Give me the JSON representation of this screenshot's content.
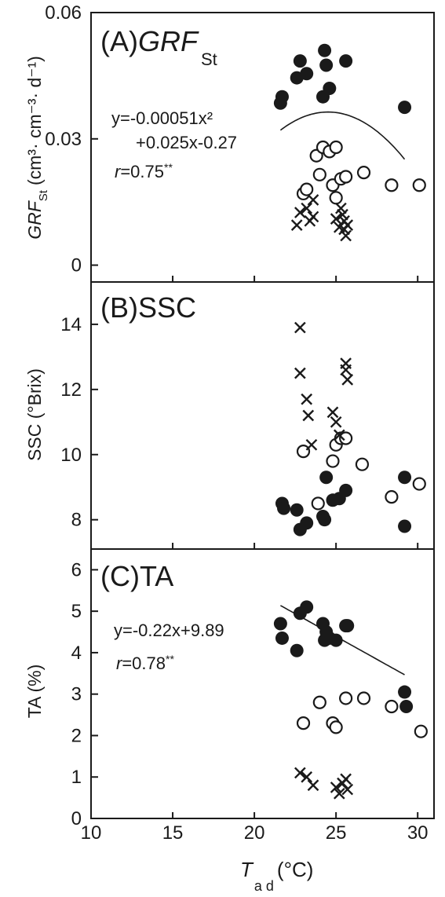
{
  "x_axis": {
    "label_main": "T",
    "label_sub": "a d",
    "label_unit": "(°C)",
    "ticks": [
      "10",
      "15",
      "20",
      "25",
      "30"
    ]
  },
  "panels": [
    {
      "label_prefix": "(A)",
      "label_main": "GRF",
      "label_sub": "St",
      "ylabel_main": "GRF",
      "ylabel_sub": "St",
      "ylabel_unit": "(cm³· cm⁻³· d⁻¹)",
      "yticks": [
        "0",
        "0.03",
        "0.06"
      ],
      "equation_line1": "y=-0.00051x²",
      "equation_line2": "+0.025x-0.27",
      "r_prefix": "r",
      "r_value": "=0.75",
      "r_sig": "**"
    },
    {
      "label_prefix": "(B)",
      "label_main": "SSC",
      "ylabel_main": "SSC (°Brix)",
      "yticks": [
        "8",
        "10",
        "12",
        "14"
      ]
    },
    {
      "label_prefix": "(C)",
      "label_main": "TA",
      "ylabel_main": "TA (%)",
      "yticks": [
        "0",
        "1",
        "2",
        "3",
        "4",
        "5",
        "6"
      ],
      "equation_line1": "y=-0.22x+9.89",
      "r_prefix": "r",
      "r_value": "=0.78",
      "r_sig": "**"
    }
  ],
  "chart_data": [
    {
      "type": "scatter",
      "title": "(A)GRF St",
      "xlabel": "T a d (°C)",
      "ylabel": "GRF St (cm³· cm⁻³· d⁻¹)",
      "xlim": [
        10,
        31
      ],
      "ylim": [
        -0.004,
        0.06
      ],
      "series": [
        {
          "marker": "filled-circle",
          "x": [
            21.6,
            21.7,
            22.6,
            22.8,
            23.2,
            24.2,
            24.3,
            24.4,
            24.6,
            25.6,
            29.2
          ],
          "y": [
            0.0385,
            0.04,
            0.0445,
            0.0485,
            0.0455,
            0.04,
            0.051,
            0.0475,
            0.042,
            0.0485,
            0.0375
          ]
        },
        {
          "marker": "open-circle",
          "x": [
            23.0,
            23.2,
            23.8,
            24.0,
            24.2,
            24.6,
            24.8,
            25.0,
            25.0,
            25.3,
            25.6,
            26.7,
            28.4,
            30.1
          ],
          "y": [
            0.017,
            0.018,
            0.026,
            0.0215,
            0.028,
            0.027,
            0.019,
            0.028,
            0.016,
            0.0205,
            0.021,
            0.022,
            0.019,
            0.019
          ]
        },
        {
          "marker": "cross",
          "x": [
            22.6,
            22.8,
            23.2,
            23.4,
            23.6,
            23.6,
            25.0,
            25.2,
            25.3,
            25.4,
            25.5,
            25.5,
            25.6,
            25.7
          ],
          "y": [
            0.0095,
            0.0125,
            0.0135,
            0.0105,
            0.0155,
            0.0115,
            0.011,
            0.009,
            0.0135,
            0.012,
            0.0085,
            0.0105,
            0.007,
            0.0095
          ]
        }
      ],
      "fit": {
        "kind": "quadratic",
        "coefficients": [
          -0.00051,
          0.025,
          -0.27
        ],
        "x_range": [
          21.6,
          29.2
        ]
      }
    },
    {
      "type": "scatter",
      "title": "(B)SSC",
      "xlabel": "T a d (°C)",
      "ylabel": "SSC (°Brix)",
      "xlim": [
        10,
        31
      ],
      "ylim": [
        7.1,
        15.3
      ],
      "series": [
        {
          "marker": "filled-circle",
          "x": [
            21.7,
            21.8,
            22.6,
            22.8,
            23.2,
            24.2,
            24.3,
            24.4,
            24.8,
            25.2,
            25.6,
            29.2,
            29.2
          ],
          "y": [
            8.5,
            8.35,
            8.3,
            7.7,
            7.9,
            8.1,
            8.0,
            9.3,
            8.6,
            8.65,
            8.9,
            9.3,
            7.8
          ]
        },
        {
          "marker": "open-circle",
          "x": [
            23.0,
            23.9,
            24.8,
            25.0,
            25.3,
            25.6,
            26.6,
            28.4,
            30.1
          ],
          "y": [
            10.1,
            8.5,
            9.8,
            10.3,
            10.5,
            10.5,
            9.7,
            8.7,
            9.1
          ]
        },
        {
          "marker": "cross",
          "x": [
            22.8,
            22.8,
            23.2,
            23.3,
            23.5,
            24.8,
            25.0,
            25.2,
            25.6,
            25.6,
            25.7
          ],
          "y": [
            13.9,
            12.5,
            11.7,
            11.2,
            10.3,
            11.3,
            11.0,
            10.6,
            12.8,
            12.6,
            12.3
          ]
        }
      ]
    },
    {
      "type": "scatter",
      "title": "(C)TA",
      "xlabel": "T a d (°C)",
      "ylabel": "TA (%)",
      "xlim": [
        10,
        31
      ],
      "ylim": [
        0,
        6.5
      ],
      "series": [
        {
          "marker": "filled-circle",
          "x": [
            21.6,
            21.7,
            22.6,
            22.8,
            23.2,
            24.2,
            24.3,
            24.4,
            24.6,
            25.0,
            25.6,
            25.7,
            29.2,
            29.3
          ],
          "y": [
            4.7,
            4.35,
            4.05,
            4.95,
            5.1,
            4.7,
            4.3,
            4.5,
            4.35,
            4.3,
            4.65,
            4.65,
            3.05,
            2.7
          ]
        },
        {
          "marker": "open-circle",
          "x": [
            23.0,
            24.0,
            24.8,
            25.0,
            25.6,
            26.7,
            28.4,
            30.2
          ],
          "y": [
            2.3,
            2.8,
            2.3,
            2.2,
            2.9,
            2.9,
            2.7,
            2.1
          ]
        },
        {
          "marker": "cross",
          "x": [
            22.8,
            23.2,
            23.6,
            25.0,
            25.2,
            25.4,
            25.6,
            25.7
          ],
          "y": [
            1.1,
            1.0,
            0.8,
            0.75,
            0.6,
            0.85,
            0.95,
            0.7
          ]
        }
      ],
      "fit": {
        "kind": "linear",
        "coefficients": [
          -0.22,
          9.89
        ],
        "x_range": [
          21.6,
          29.2
        ]
      }
    }
  ]
}
